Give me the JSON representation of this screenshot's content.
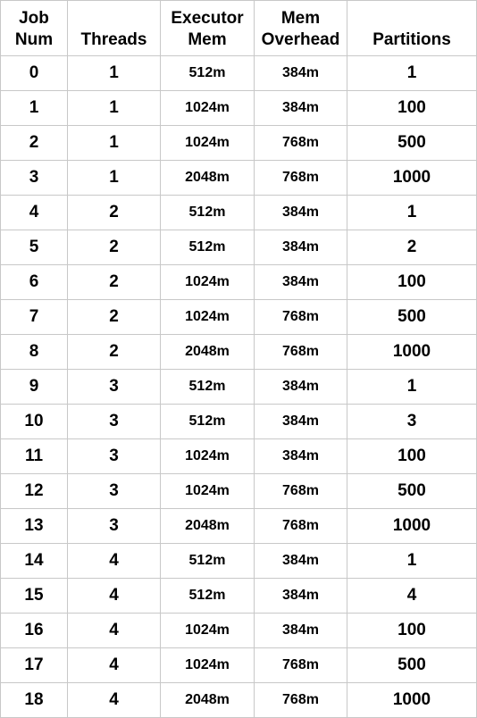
{
  "headers": [
    [
      "Job",
      "Num"
    ],
    [
      "",
      "Threads"
    ],
    [
      "Executor",
      "Mem"
    ],
    [
      "Mem",
      "Overhead"
    ],
    [
      "",
      "Partitions"
    ]
  ],
  "rows": [
    [
      "0",
      "1",
      "512m",
      "384m",
      "1"
    ],
    [
      "1",
      "1",
      "1024m",
      "384m",
      "100"
    ],
    [
      "2",
      "1",
      "1024m",
      "768m",
      "500"
    ],
    [
      "3",
      "1",
      "2048m",
      "768m",
      "1000"
    ],
    [
      "4",
      "2",
      "512m",
      "384m",
      "1"
    ],
    [
      "5",
      "2",
      "512m",
      "384m",
      "2"
    ],
    [
      "6",
      "2",
      "1024m",
      "384m",
      "100"
    ],
    [
      "7",
      "2",
      "1024m",
      "768m",
      "500"
    ],
    [
      "8",
      "2",
      "2048m",
      "768m",
      "1000"
    ],
    [
      "9",
      "3",
      "512m",
      "384m",
      "1"
    ],
    [
      "10",
      "3",
      "512m",
      "384m",
      "3"
    ],
    [
      "11",
      "3",
      "1024m",
      "384m",
      "100"
    ],
    [
      "12",
      "3",
      "1024m",
      "768m",
      "500"
    ],
    [
      "13",
      "3",
      "2048m",
      "768m",
      "1000"
    ],
    [
      "14",
      "4",
      "512m",
      "384m",
      "1"
    ],
    [
      "15",
      "4",
      "512m",
      "384m",
      "4"
    ],
    [
      "16",
      "4",
      "1024m",
      "384m",
      "100"
    ],
    [
      "17",
      "4",
      "1024m",
      "768m",
      "500"
    ],
    [
      "18",
      "4",
      "2048m",
      "768m",
      "1000"
    ]
  ]
}
